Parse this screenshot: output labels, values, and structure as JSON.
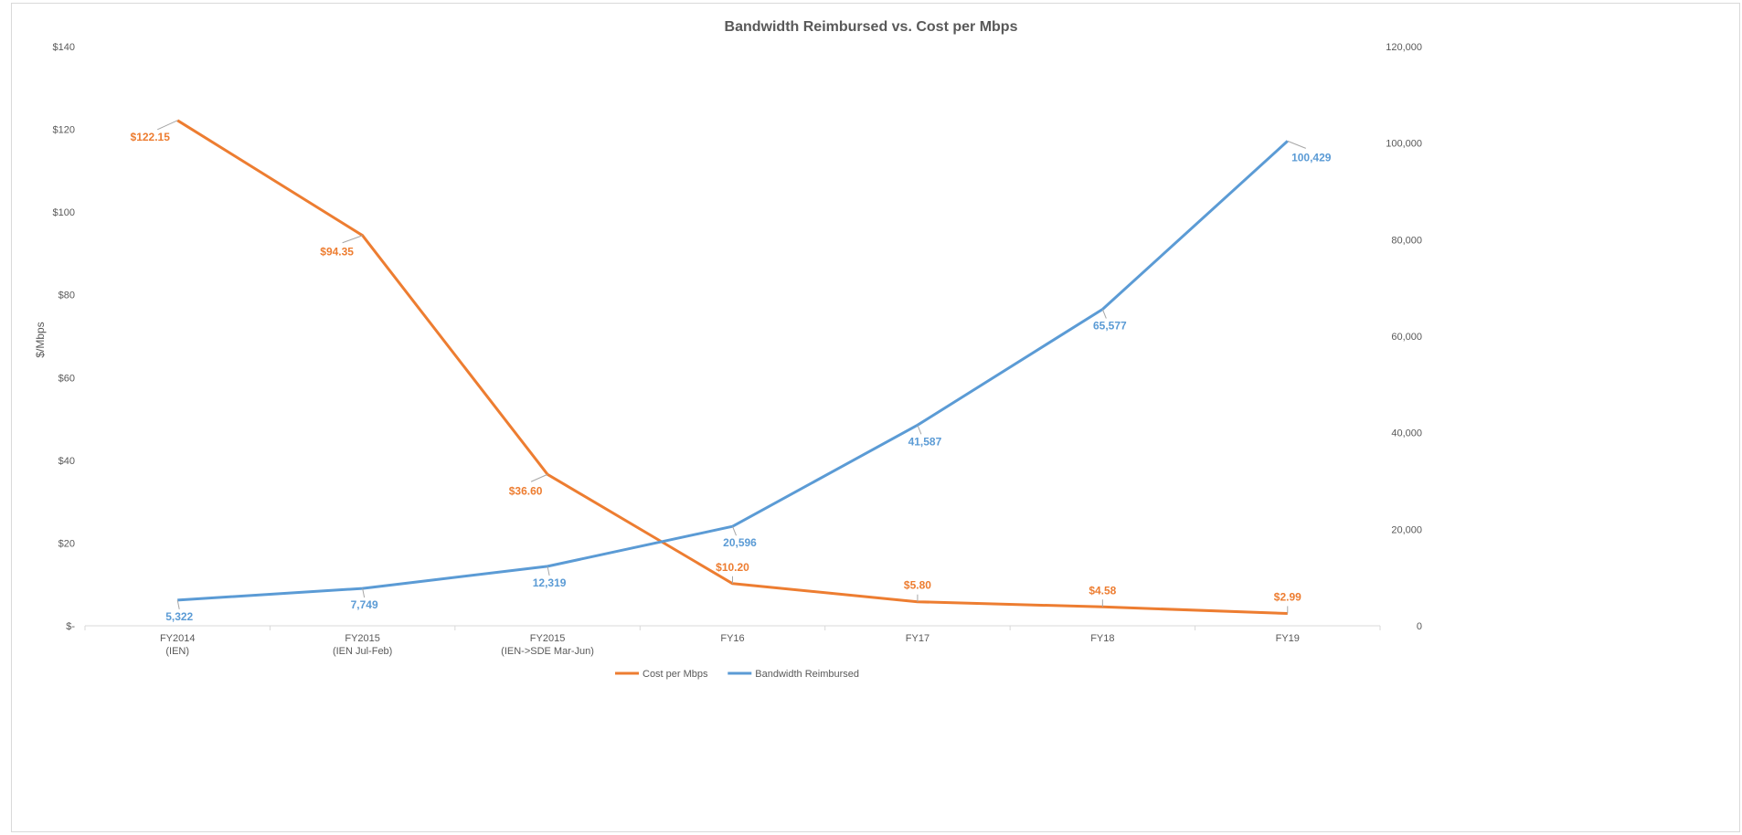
{
  "chart_data": {
    "type": "line",
    "title": "Bandwidth Reimbursed vs. Cost per Mbps",
    "categories": [
      [
        "FY2014",
        "(IEN)"
      ],
      [
        "FY2015",
        "(IEN Jul-Feb)"
      ],
      [
        "FY2015",
        "(IEN->SDE Mar-Jun)"
      ],
      [
        "FY16"
      ],
      [
        "FY17"
      ],
      [
        "FY18"
      ],
      [
        "FY19"
      ]
    ],
    "ylabel_left": "$/Mbps",
    "left_axis": {
      "ylim": [
        0,
        140
      ],
      "ticks": [
        0,
        20,
        40,
        60,
        80,
        100,
        120,
        140
      ],
      "tick_labels": [
        "$-",
        "$20",
        "$40",
        "$60",
        "$80",
        "$100",
        "$120",
        "$140"
      ]
    },
    "right_axis": {
      "ylim": [
        0,
        120000
      ],
      "ticks": [
        0,
        20000,
        40000,
        60000,
        80000,
        100000,
        120000
      ],
      "tick_labels": [
        "0",
        "20,000",
        "40,000",
        "60,000",
        "80,000",
        "100,000",
        "120,000"
      ]
    },
    "series": [
      {
        "name": "Cost per Mbps",
        "axis": "left",
        "color": "#ED7D31",
        "values": [
          122.15,
          94.35,
          36.6,
          10.2,
          5.8,
          4.58,
          2.99
        ],
        "labels": [
          "$122.15",
          "$94.35",
          "$36.60",
          "$10.20",
          "$5.80",
          "$4.58",
          "$2.99"
        ]
      },
      {
        "name": "Bandwidth Reimbursed",
        "axis": "right",
        "color": "#5B9BD5",
        "values": [
          5322,
          7749,
          12319,
          20596,
          41587,
          65577,
          100429
        ],
        "labels": [
          "5,322",
          "7,749",
          "12,319",
          "20,596",
          "41,587",
          "65,577",
          "100,429"
        ]
      }
    ],
    "legend_position": "bottom",
    "grid": false,
    "axis_color": "#d9d9d9"
  }
}
